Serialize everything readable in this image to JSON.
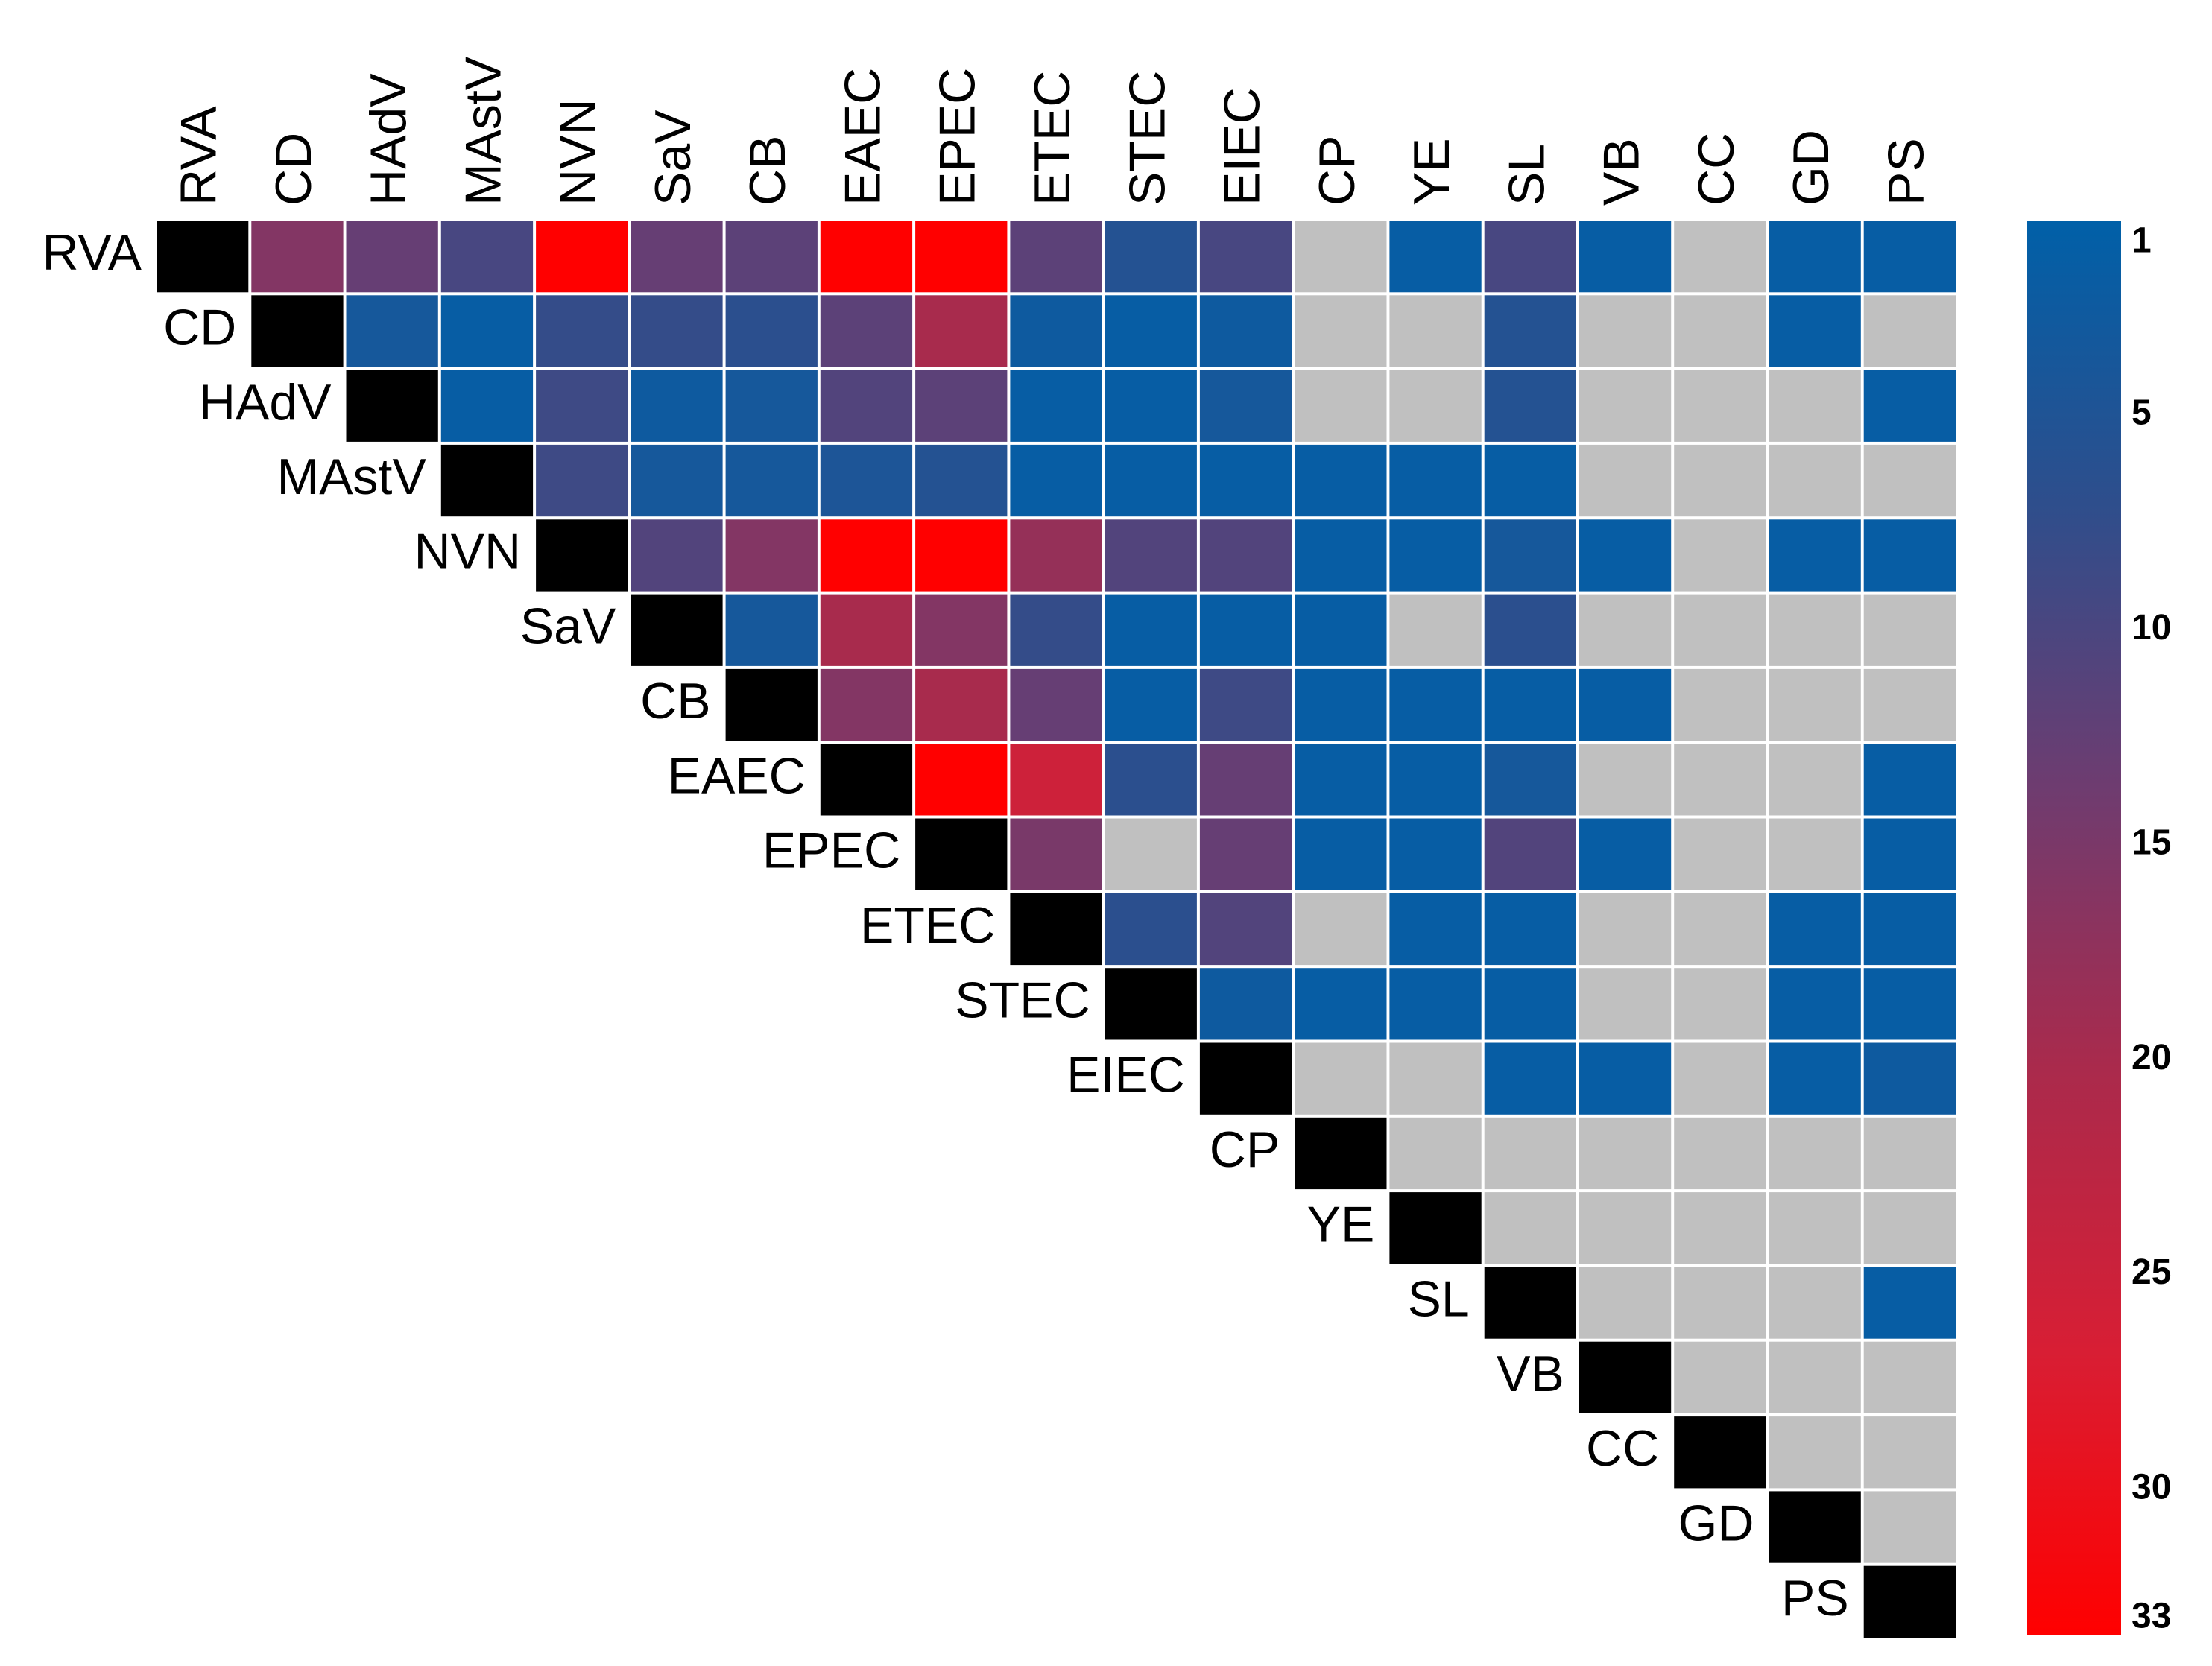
{
  "chart_data": {
    "type": "heatmap",
    "title": "",
    "labels": [
      "RVA",
      "CD",
      "HAdV",
      "MAstV",
      "NVN",
      "SaV",
      "CB",
      "EAEC",
      "EPEC",
      "ETEC",
      "STEC",
      "EIEC",
      "CP",
      "YE",
      "SL",
      "VB",
      "CC",
      "GD",
      "PS"
    ],
    "upper_triangle_values": [
      [
        16,
        13,
        10,
        33,
        13,
        12,
        33,
        33,
        12,
        6,
        10,
        0,
        2,
        10,
        2,
        0,
        2,
        2
      ],
      [
        4,
        2,
        8,
        8,
        7,
        12,
        20,
        3,
        2,
        3,
        0,
        0,
        6,
        0,
        0,
        2,
        0
      ],
      [
        2,
        9,
        3,
        4,
        11,
        12,
        2,
        2,
        4,
        0,
        0,
        6,
        0,
        0,
        0,
        2
      ],
      [
        9,
        4,
        4,
        5,
        6,
        2,
        2,
        2,
        2,
        2,
        2,
        0,
        0,
        0,
        0
      ],
      [
        11,
        16,
        33,
        33,
        18,
        11,
        11,
        2,
        2,
        4,
        2,
        0,
        2,
        2
      ],
      [
        4,
        20,
        16,
        8,
        2,
        2,
        2,
        0,
        7,
        0,
        0,
        0,
        0
      ],
      [
        16,
        20,
        13,
        2,
        9,
        2,
        2,
        2,
        2,
        0,
        0,
        0
      ],
      [
        33,
        25,
        7,
        13,
        2,
        2,
        4,
        0,
        0,
        0,
        2
      ],
      [
        15,
        0,
        13,
        2,
        2,
        11,
        2,
        0,
        0,
        2
      ],
      [
        7,
        11,
        0,
        2,
        2,
        0,
        0,
        2,
        2
      ],
      [
        3,
        2,
        2,
        2,
        0,
        0,
        2,
        2
      ],
      [
        0,
        0,
        2,
        2,
        0,
        2,
        3
      ],
      [
        0,
        0,
        0,
        0,
        0,
        0
      ],
      [
        0,
        0,
        0,
        0,
        0
      ],
      [
        0,
        0,
        0,
        2
      ],
      [
        0,
        0,
        0
      ],
      [
        0,
        0
      ],
      [
        0
      ]
    ],
    "missing_value": 0,
    "colorbar": {
      "ticks": [
        1,
        5,
        10,
        15,
        20,
        25,
        30,
        33
      ],
      "min": 1,
      "max": 33,
      "stops": [
        "#0060a8",
        "#2e4e8c",
        "#6e3c70",
        "#aa2a4c",
        "#d81e34",
        "#ff0000"
      ]
    },
    "colors": {
      "diagonal": "#000000",
      "missing": "#c0c0c0",
      "grid_lines": "#ffffff"
    }
  }
}
